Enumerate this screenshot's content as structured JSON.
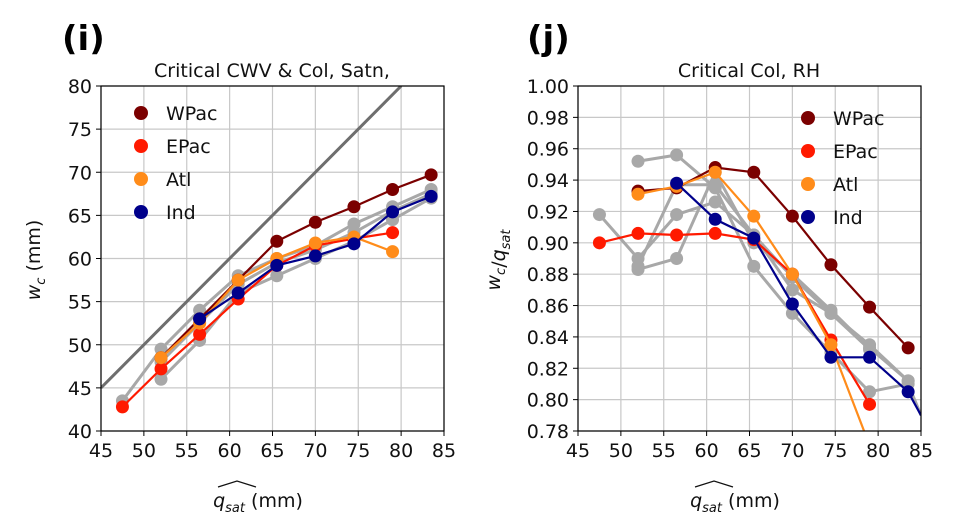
{
  "panels": [
    {
      "id": "i",
      "label": "(i)",
      "title": "Critical CWV & Col, Satn,",
      "xlabel": "q̂_sat (mm)",
      "ylabel": "w_c (mm)"
    },
    {
      "id": "j",
      "label": "(j)",
      "title": "Critical Col, RH",
      "xlabel": "q̂_sat (mm)",
      "ylabel": "w_c/q̂_sat"
    }
  ],
  "colors": {
    "WPac": "#7b0000",
    "EPac": "#ff1a00",
    "Atl": "#ff8c1a",
    "Ind": "#00008b",
    "gray": "#a8a8a8",
    "diag": "#6e6e6e",
    "grid": "#c8c8c8"
  },
  "chart_data": [
    {
      "panel": "i",
      "type": "line",
      "title": "Critical CWV & Col, Satn,",
      "xlabel": "q̂_sat (mm)",
      "ylabel": "w_c (mm)",
      "xlim": [
        45,
        85
      ],
      "ylim": [
        40,
        80
      ],
      "xticks": [
        45,
        50,
        55,
        60,
        65,
        70,
        75,
        80,
        85
      ],
      "yticks": [
        40,
        45,
        50,
        55,
        60,
        65,
        70,
        75,
        80
      ],
      "grid": true,
      "legend_position": "top-left",
      "reference_line": {
        "x": [
          45,
          80
        ],
        "y": [
          45,
          80
        ]
      },
      "background_series": [
        {
          "x": [
            47.5,
            52,
            56.5,
            61,
            65.5,
            70,
            74.5,
            79,
            83.5
          ],
          "y": [
            43.5,
            49.5,
            54,
            58,
            60,
            61.5,
            64,
            66,
            68
          ]
        },
        {
          "x": [
            52,
            56.5,
            61,
            65.5,
            70,
            74.5,
            79,
            83.5
          ],
          "y": [
            46,
            50.5,
            56,
            58,
            60,
            62,
            64.5,
            67
          ]
        },
        {
          "x": [
            52,
            56.5,
            61,
            65.5,
            70,
            74.5,
            79,
            83.5
          ],
          "y": [
            48,
            52.5,
            57,
            59.5,
            61,
            63,
            65.5,
            67.5
          ]
        }
      ],
      "series": [
        {
          "name": "WPac",
          "x": [
            52,
            56.5,
            61,
            65.5,
            70,
            74.5,
            79,
            83.5
          ],
          "y": [
            48.5,
            53,
            57.5,
            62,
            64.2,
            66,
            68,
            69.7
          ]
        },
        {
          "name": "EPac",
          "x": [
            47.5,
            52,
            56.5,
            61,
            65.5,
            70,
            74.5,
            79
          ],
          "y": [
            42.8,
            47.2,
            51.2,
            55.3,
            59.2,
            61.5,
            62.3,
            63
          ]
        },
        {
          "name": "Atl",
          "x": [
            52,
            56.5,
            61,
            65.5,
            70,
            74.5,
            79
          ],
          "y": [
            48.5,
            52.5,
            57.5,
            60,
            61.8,
            62.5,
            60.8
          ]
        },
        {
          "name": "Ind",
          "x": [
            56.5,
            61,
            65.5,
            70,
            74.5,
            79,
            83.5
          ],
          "y": [
            53,
            56,
            59.2,
            60.3,
            61.7,
            65.4,
            67.2
          ]
        }
      ]
    },
    {
      "panel": "j",
      "type": "line",
      "title": "Critical Col, RH",
      "xlabel": "q̂_sat (mm)",
      "ylabel": "w_c/q̂_sat",
      "xlim": [
        45,
        85
      ],
      "ylim": [
        0.78,
        1.0
      ],
      "xticks": [
        45,
        50,
        55,
        60,
        65,
        70,
        75,
        80,
        85
      ],
      "yticks": [
        0.78,
        0.8,
        0.82,
        0.84,
        0.86,
        0.88,
        0.9,
        0.92,
        0.94,
        0.96,
        0.98,
        1.0
      ],
      "grid": true,
      "legend_position": "top-right",
      "background_series": [
        {
          "x": [
            47.5,
            52,
            56.5,
            61,
            65.5,
            70,
            74.5,
            79,
            83.5
          ],
          "y": [
            0.918,
            0.89,
            0.918,
            0.926,
            0.905,
            0.87,
            0.855,
            0.835,
            0.812
          ]
        },
        {
          "x": [
            52,
            56.5,
            61,
            65.5,
            70,
            74.5,
            79,
            83.5,
            85
          ],
          "y": [
            0.952,
            0.956,
            0.935,
            0.885,
            0.855,
            0.83,
            0.805,
            0.81,
            0.79
          ]
        },
        {
          "x": [
            52,
            56.5,
            61,
            65.5,
            70,
            74.5,
            79,
            83.5
          ],
          "y": [
            0.883,
            0.89,
            0.945,
            0.9,
            0.88,
            0.857,
            0.833,
            0.812
          ]
        },
        {
          "x": [
            52,
            56.5,
            61,
            65.5,
            70,
            74.5,
            79
          ],
          "y": [
            0.885,
            0.937,
            0.937,
            0.905,
            0.878,
            0.855,
            0.832
          ]
        }
      ],
      "series": [
        {
          "name": "WPac",
          "x": [
            52,
            56.5,
            61,
            65.5,
            70,
            74.5,
            79,
            83.5
          ],
          "y": [
            0.933,
            0.935,
            0.948,
            0.945,
            0.917,
            0.886,
            0.859,
            0.833
          ]
        },
        {
          "name": "EPac",
          "x": [
            47.5,
            52,
            56.5,
            61,
            65.5,
            70,
            74.5,
            79
          ],
          "y": [
            0.9,
            0.906,
            0.905,
            0.906,
            0.902,
            0.88,
            0.838,
            0.797
          ]
        },
        {
          "name": "Atl",
          "x": [
            52,
            56.5,
            61,
            65.5,
            70,
            74.5,
            78.5
          ],
          "y": [
            0.931,
            0.936,
            0.945,
            0.917,
            0.88,
            0.835,
            0.778
          ]
        },
        {
          "name": "Ind",
          "x": [
            56.5,
            61,
            65.5,
            70,
            74.5,
            79,
            83.5,
            85
          ],
          "y": [
            0.938,
            0.915,
            0.903,
            0.861,
            0.827,
            0.827,
            0.805,
            0.79
          ]
        }
      ]
    }
  ]
}
